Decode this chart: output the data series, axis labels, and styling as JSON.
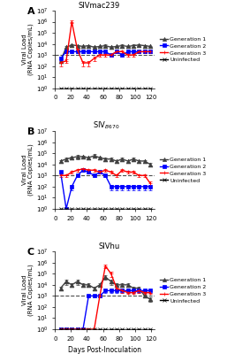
{
  "panel_A": {
    "title": "SIVmac239",
    "gen1": {
      "x": [
        7,
        14,
        21,
        28,
        35,
        42,
        49,
        56,
        63,
        70,
        77,
        84,
        91,
        98,
        105,
        112,
        119
      ],
      "y": [
        300.0,
        5000.0,
        8000.0,
        7000.0,
        6000.0,
        7000.0,
        5000.0,
        6000.0,
        7000.0,
        5000.0,
        6000.0,
        7000.0,
        6000.0,
        7000.0,
        8000.0,
        7000.0,
        6000.0
      ],
      "yerr": [
        100.0,
        2000.0,
        2000.0,
        1000.0,
        1000.0,
        1000.0,
        1000.0,
        1000.0,
        2000.0,
        1000.0,
        1000.0,
        2000.0,
        1000.0,
        2000.0,
        2000.0,
        1000.0,
        1000.0
      ]
    },
    "gen2": {
      "x": [
        7,
        14,
        21,
        28,
        35,
        42,
        49,
        56,
        63,
        70,
        77,
        84,
        91,
        98,
        105,
        112,
        119
      ],
      "y": [
        500.0,
        2000.0,
        2000.0,
        2000.0,
        2000.0,
        2000.0,
        2000.0,
        2000.0,
        2000.0,
        1000.0,
        2000.0,
        1000.0,
        2000.0,
        2000.0,
        2000.0,
        2000.0,
        2000.0
      ],
      "yerr": [
        200.0,
        500.0,
        500.0,
        500.0,
        500.0,
        500.0,
        500.0,
        500.0,
        500.0,
        300.0,
        500.0,
        300.0,
        500.0,
        500.0,
        500.0,
        500.0,
        500.0
      ]
    },
    "gen3": {
      "x": [
        7,
        14,
        21,
        28,
        35,
        42,
        49,
        56,
        63,
        70,
        77,
        84,
        91,
        98,
        105,
        112,
        119
      ],
      "y": [
        200.0,
        300.0,
        1000000.0,
        3000.0,
        200.0,
        200.0,
        500.0,
        1000.0,
        1000.0,
        1000.0,
        2000.0,
        2000.0,
        1000.0,
        1000.0,
        2000.0,
        2000.0,
        2000.0
      ],
      "yerr": [
        100.0,
        100.0,
        300000.0,
        1000.0,
        100.0,
        100.0,
        200.0,
        300.0,
        300.0,
        300.0,
        500.0,
        500.0,
        300.0,
        300.0,
        500.0,
        500.0,
        500.0
      ]
    },
    "uninfected": {
      "x": [
        7,
        14,
        21,
        28,
        35,
        42,
        49,
        56,
        63,
        70,
        77,
        84,
        91,
        98,
        105,
        112,
        119
      ],
      "y": [
        1.0,
        1.0,
        1.0,
        1.0,
        1.0,
        1.0,
        1.0,
        1.0,
        1.0,
        1.0,
        1.0,
        1.0,
        1.0,
        1.0,
        1.0,
        1.0,
        1.0
      ],
      "yerr": [
        0,
        0,
        0,
        0,
        0,
        0,
        0,
        0,
        0,
        0,
        0,
        0,
        0,
        0,
        0,
        0,
        0
      ]
    }
  },
  "panel_B": {
    "title": "SIV$_{B670}$",
    "gen1": {
      "x": [
        7,
        14,
        21,
        28,
        35,
        42,
        49,
        56,
        63,
        70,
        77,
        84,
        91,
        98,
        105,
        112,
        119
      ],
      "y": [
        20000.0,
        30000.0,
        40000.0,
        50000.0,
        50000.0,
        40000.0,
        60000.0,
        40000.0,
        30000.0,
        30000.0,
        20000.0,
        30000.0,
        20000.0,
        30000.0,
        20000.0,
        20000.0,
        10000.0
      ],
      "yerr": [
        5000.0,
        10000.0,
        10000.0,
        20000.0,
        10000.0,
        10000.0,
        20000.0,
        10000.0,
        10000.0,
        10000.0,
        5000.0,
        10000.0,
        5000.0,
        10000.0,
        5000.0,
        5000.0,
        3000.0
      ]
    },
    "gen2": {
      "x": [
        7,
        14,
        21,
        28,
        35,
        42,
        49,
        56,
        63,
        70,
        77,
        84,
        91,
        98,
        105,
        112,
        119
      ],
      "y": [
        2000.0,
        1.0,
        100.0,
        1000.0,
        3000.0,
        2000.0,
        1000.0,
        2000.0,
        1000.0,
        100.0,
        100.0,
        100.0,
        100.0,
        100.0,
        100.0,
        100.0,
        100.0
      ],
      "yerr": [
        500.0,
        0,
        50.0,
        300.0,
        1000.0,
        500.0,
        300.0,
        500.0,
        300.0,
        50.0,
        50.0,
        50.0,
        50.0,
        50.0,
        50.0,
        50.0,
        50.0
      ]
    },
    "gen3": {
      "x": [
        7,
        14,
        21,
        28,
        35,
        42,
        49,
        56,
        63,
        70,
        77,
        84,
        91,
        98,
        105,
        112,
        119
      ],
      "y": [
        1000.0,
        1000.0,
        2000.0,
        3000.0,
        4000.0,
        3000.0,
        3000.0,
        2000.0,
        3000.0,
        2000.0,
        1000.0,
        3000.0,
        2000.0,
        2000.0,
        1000.0,
        1000.0,
        200.0
      ],
      "yerr": [
        300.0,
        300.0,
        500.0,
        1000.0,
        1000.0,
        1000.0,
        1000.0,
        500.0,
        1000.0,
        500.0,
        300.0,
        1000.0,
        500.0,
        500.0,
        300.0,
        300.0,
        100.0
      ]
    },
    "uninfected": {
      "x": [
        7,
        14,
        21,
        28,
        35,
        42,
        49,
        56,
        63,
        70,
        77,
        84,
        91,
        98,
        105,
        112,
        119
      ],
      "y": [
        1.0,
        1.0,
        1.0,
        1.0,
        1.0,
        1.0,
        1.0,
        1.0,
        1.0,
        1.0,
        1.0,
        1.0,
        1.0,
        1.0,
        1.0,
        1.0,
        1.0
      ],
      "yerr": [
        0,
        0,
        0,
        0,
        0,
        0,
        0,
        0,
        0,
        0,
        0,
        0,
        0,
        0,
        0,
        0,
        0
      ]
    }
  },
  "panel_C": {
    "title": "SIVhu",
    "gen1": {
      "x": [
        7,
        14,
        21,
        28,
        35,
        42,
        49,
        56,
        63,
        70,
        77,
        84,
        91,
        98,
        105,
        112,
        119
      ],
      "y": [
        5000.0,
        20000.0,
        10000.0,
        20000.0,
        10000.0,
        10000.0,
        5000.0,
        10000.0,
        50000.0,
        20000.0,
        10000.0,
        10000.0,
        10000.0,
        5000.0,
        5000.0,
        1000.0,
        500.0
      ],
      "yerr": [
        2000.0,
        10000.0,
        3000.0,
        10000.0,
        3000.0,
        3000.0,
        2000.0,
        3000.0,
        20000.0,
        10000.0,
        3000.0,
        3000.0,
        3000.0,
        2000.0,
        2000.0,
        300.0,
        200.0
      ]
    },
    "gen2": {
      "x": [
        7,
        14,
        21,
        28,
        35,
        42,
        49,
        56,
        63,
        70,
        77,
        84,
        91,
        98,
        105,
        112,
        119
      ],
      "y": [
        1.0,
        1.0,
        1.0,
        1.0,
        1.0,
        1000.0,
        1000.0,
        1000.0,
        3000.0,
        3000.0,
        3000.0,
        3000.0,
        3000.0,
        3000.0,
        3000.0,
        3000.0,
        3000.0
      ],
      "yerr": [
        0,
        0,
        0,
        0,
        0,
        300.0,
        300.0,
        300.0,
        1000.0,
        1000.0,
        1000.0,
        1000.0,
        1000.0,
        1000.0,
        1000.0,
        1000.0,
        1000.0
      ]
    },
    "gen3": {
      "x": [
        7,
        14,
        21,
        28,
        35,
        42,
        49,
        56,
        63,
        70,
        77,
        84,
        91,
        98,
        105,
        112,
        119
      ],
      "y": [
        1.0,
        1.0,
        1.0,
        1.0,
        1.0,
        1.0,
        1.0,
        1000.0,
        500000.0,
        100000.0,
        5000.0,
        3000.0,
        2000.0,
        2000.0,
        3000.0,
        2000.0,
        2000.0
      ],
      "yerr": [
        0,
        0,
        0,
        0,
        0,
        0,
        0,
        300.0,
        200000.0,
        50000.0,
        2000.0,
        1000.0,
        500.0,
        500.0,
        1000.0,
        500.0,
        500.0
      ]
    },
    "uninfected": {
      "x": [
        7,
        14,
        21,
        28,
        35,
        42,
        49,
        56,
        63,
        70,
        77,
        84,
        91,
        98,
        105,
        112,
        119
      ],
      "y": [
        1.0,
        1.0,
        1.0,
        1.0,
        1.0,
        1.0,
        1.0,
        1.0,
        1.0,
        1.0,
        1.0,
        1.0,
        1.0,
        1.0,
        1.0,
        1.0,
        1.0
      ],
      "yerr": [
        0,
        0,
        0,
        0,
        0,
        0,
        0,
        0,
        0,
        0,
        0,
        0,
        0,
        0,
        0,
        0,
        0
      ]
    }
  },
  "colors": {
    "gen1": "#404040",
    "gen2": "#0000ff",
    "gen3": "#ff0000",
    "uninfected": "#000000"
  },
  "ylabel": "Viral Load\n(RNA Copies/mL)",
  "xlabel": "Days Post-Inoculation",
  "detection_limit": 1000,
  "ylim_log": [
    0,
    7
  ],
  "yticks": [
    1.0,
    10.0,
    100.0,
    1000.0,
    10000.0,
    100000.0,
    1000000.0,
    10000000.0
  ],
  "xticks": [
    0,
    20,
    40,
    60,
    80,
    100,
    120
  ],
  "legend_labels": [
    "Generation 1",
    "Generation 2",
    "Generation 3",
    "Uninfected"
  ],
  "panels": [
    "A",
    "B",
    "C"
  ]
}
